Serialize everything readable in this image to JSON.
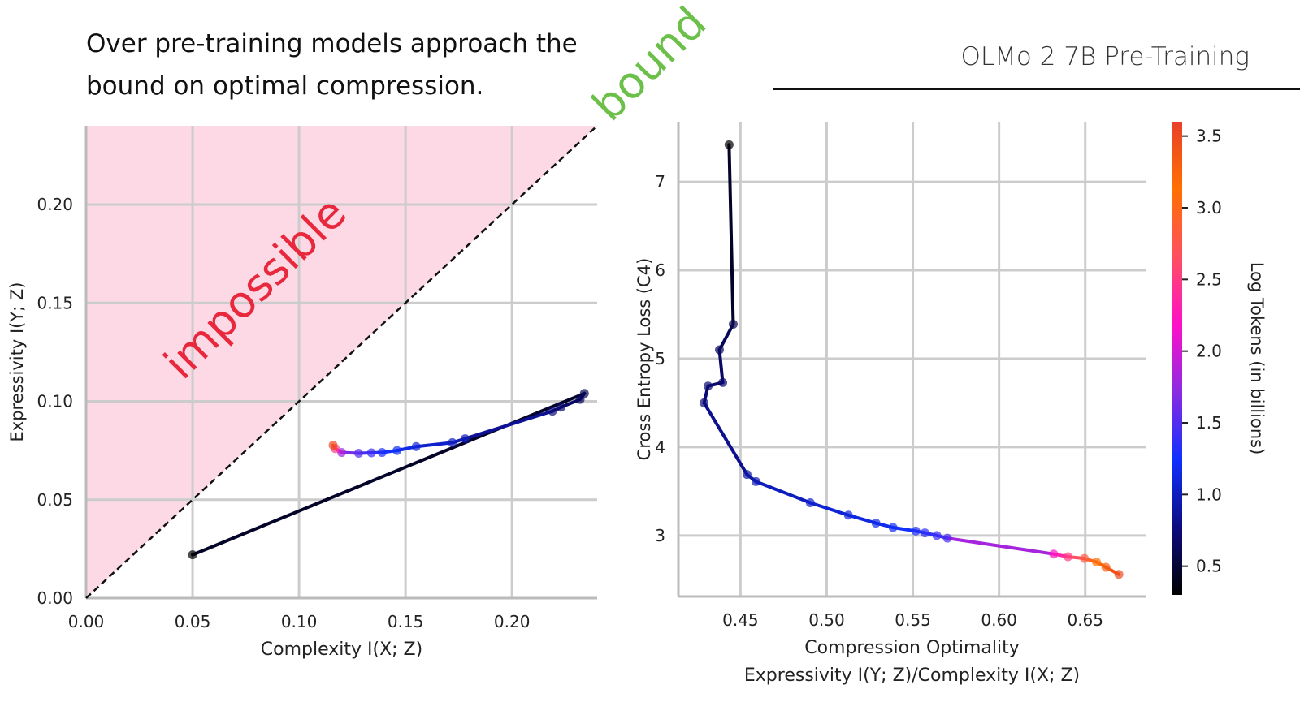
{
  "headline": "Over pre-training models approach the bound on optimal compression.",
  "subtitle": "OLMo 2 7B Pre-Training",
  "colors": {
    "impossible_fill": "#fdd9e6",
    "impossible_text": "#e8283c",
    "bound_text": "#6cc04a",
    "grid": "#cccccc"
  },
  "chart_data": [
    {
      "type": "line",
      "xlabel": "Complexity I(X; Z)",
      "ylabel": "Expressivity I(Y; Z)",
      "xlim": [
        0,
        0.24
      ],
      "ylim": [
        0,
        0.24
      ],
      "xticks": [
        "0.00",
        "0.05",
        "0.10",
        "0.15",
        "0.20"
      ],
      "yticks": [
        "0.00",
        "0.05",
        "0.10",
        "0.15",
        "0.20"
      ],
      "grid": true,
      "annotations": {
        "region": "impossible",
        "line": "bound"
      },
      "bound_line": {
        "x": [
          0,
          0.24
        ],
        "y": [
          0,
          0.24
        ],
        "style": "dashed"
      },
      "x": [
        0.05,
        0.234,
        0.232,
        0.223,
        0.219,
        0.178,
        0.172,
        0.155,
        0.146,
        0.139,
        0.134,
        0.128,
        0.12,
        0.117,
        0.116
      ],
      "y": [
        0.022,
        0.104,
        0.101,
        0.097,
        0.095,
        0.081,
        0.079,
        0.077,
        0.075,
        0.074,
        0.0738,
        0.0736,
        0.074,
        0.076,
        0.0777
      ],
      "tokens": [
        0.3,
        0.6,
        0.65,
        0.7,
        0.75,
        0.95,
        1.0,
        1.1,
        1.2,
        1.3,
        1.4,
        1.5,
        1.8,
        2.5,
        3.5
      ]
    },
    {
      "type": "line",
      "xlabel": "Compression Optimality",
      "xlabel2": "Expressivity I(Y; Z)/Complexity I(X; Z)",
      "ylabel": "Cross Entropy Loss (C4)",
      "xlim": [
        0.414,
        0.685
      ],
      "ylim": [
        2.31,
        7.68
      ],
      "xticks": [
        "0.45",
        "0.50",
        "0.55",
        "0.60",
        "0.65"
      ],
      "yticks": [
        "3",
        "4",
        "5",
        "6",
        "7"
      ],
      "grid": true,
      "x": [
        0.4434,
        0.4458,
        0.4378,
        0.4397,
        0.4312,
        0.4289,
        0.4538,
        0.459,
        0.4905,
        0.5126,
        0.5286,
        0.5385,
        0.5517,
        0.557,
        0.5639,
        0.57,
        0.6317,
        0.64,
        0.6495,
        0.6565,
        0.662,
        0.6695
      ],
      "y": [
        7.42,
        5.39,
        5.1,
        4.73,
        4.69,
        4.5,
        3.69,
        3.61,
        3.37,
        3.23,
        3.14,
        3.09,
        3.05,
        3.03,
        3.0,
        2.97,
        2.79,
        2.76,
        2.74,
        2.7,
        2.64,
        2.56
      ],
      "tokens": [
        0.3,
        0.6,
        0.65,
        0.7,
        0.72,
        0.75,
        0.9,
        0.95,
        1.05,
        1.1,
        1.15,
        1.2,
        1.3,
        1.35,
        1.4,
        1.45,
        2.2,
        2.5,
        2.8,
        3.1,
        3.3,
        3.5
      ]
    }
  ],
  "colorbar": {
    "label": "Log Tokens (in billions)",
    "range": [
      0.3,
      3.6
    ],
    "ticks": [
      "0.5",
      "1.0",
      "1.5",
      "2.0",
      "2.5",
      "3.0",
      "3.5"
    ],
    "colormap": [
      "#000000",
      "#0c0c80",
      "#1030ff",
      "#8a2be2",
      "#ff10c8",
      "#ff5060",
      "#ff7000",
      "#e8402a"
    ]
  }
}
